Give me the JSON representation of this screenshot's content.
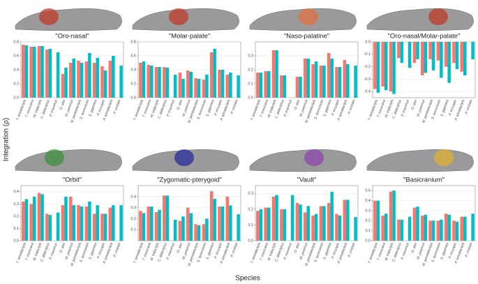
{
  "ylabel": "Integration (ρ)",
  "xlabel": "Species",
  "chart_data": [
    {
      "type": "bar",
      "title": "\"Oro-nasal\"",
      "ylim": [
        0,
        0.8
      ],
      "yticks": [
        {
          "value": 0,
          "label": "0.0"
        },
        0.2,
        0.4,
        0.6,
        0.8
      ],
      "grid": true,
      "categories": [
        "T. tetradactyla",
        "T. mexicana",
        "M. tridactyla",
        "C. didactylus",
        "P. maximus",
        "O. afer",
        "M. javanica",
        "M. pentadactyla",
        "S. temminckii",
        "S. gigantea",
        "P. tricuspis",
        "P. tetradactyla",
        "P. cristata"
      ],
      "series": [
        {
          "color": "#f8766d",
          "values": [
            0.76,
            0.73,
            0.74,
            0.69,
            null,
            0.34,
            0.5,
            0.53,
            0.52,
            0.5,
            0.45,
            0.53,
            null
          ]
        },
        {
          "color": "#00bfc4",
          "values": [
            0.75,
            0.73,
            0.74,
            0.7,
            0.65,
            0.43,
            0.56,
            0.5,
            0.64,
            0.57,
            0.39,
            0.6,
            0.46
          ]
        }
      ]
    },
    {
      "type": "bar",
      "title": "\"Molar-palate\"",
      "ylim": [
        0,
        0.8
      ],
      "yticks": [
        {
          "value": 0,
          "label": "0.0"
        },
        0.2,
        0.4,
        0.6,
        0.8
      ],
      "grid": true,
      "categories": [
        "T. tetradactyla",
        "T. mexicana",
        "M. tridactyla",
        "C. didactylus",
        "P. maximus",
        "O. afer",
        "M. javanica",
        "M. pentadactyla",
        "S. temminckii",
        "S. gigantea",
        "P. tricuspis",
        "P. tetradactyla",
        "P. cristata"
      ],
      "series": [
        {
          "color": "#f8766d",
          "values": [
            0.5,
            0.47,
            0.44,
            0.44,
            null,
            0.36,
            0.39,
            0.28,
            0.26,
            0.65,
            0.4,
            0.33,
            null
          ]
        },
        {
          "color": "#00bfc4",
          "values": [
            0.52,
            0.46,
            0.44,
            0.43,
            0.33,
            0.27,
            0.37,
            0.27,
            0.33,
            0.7,
            0.4,
            0.36,
            0.32
          ]
        }
      ]
    },
    {
      "type": "bar",
      "title": "\"Naso-palatine\"",
      "ylim": [
        0,
        0.4
      ],
      "yticks": [
        {
          "value": 0,
          "label": "0.0"
        },
        0.1,
        0.2,
        0.3
      ],
      "grid": true,
      "categories": [
        "T. tetradactyla",
        "T. mexicana",
        "M. tridactyla",
        "C. didactylus",
        "P. maximus",
        "O. afer",
        "M. javanica",
        "M. pentadactyla",
        "S. temminckii",
        "S. gigantea",
        "P. tricuspis",
        "P. tetradactyla",
        "P. cristata"
      ],
      "series": [
        {
          "color": "#f8766d",
          "values": [
            0.18,
            0.19,
            0.34,
            0.16,
            null,
            0.15,
            0.28,
            0.24,
            0.23,
            0.32,
            0.22,
            0.27,
            null
          ]
        },
        {
          "color": "#00bfc4",
          "values": [
            0.18,
            0.19,
            0.34,
            0.16,
            null,
            0.15,
            0.28,
            0.26,
            0.23,
            0.28,
            0.22,
            0.24,
            0.23
          ]
        }
      ]
    },
    {
      "type": "bar",
      "title": "\"Oro-nasal/Molar-palate\"",
      "ylim": [
        -0.45,
        0
      ],
      "yticks": [
        -0.4,
        -0.3,
        -0.2,
        -0.1,
        {
          "value": 0,
          "label": "0.0"
        }
      ],
      "grid": true,
      "categories": [
        "T. tetradactyla",
        "T. mexicana",
        "M. tridactyla",
        "C. didactylus",
        "P. maximus",
        "O. afer",
        "M. javanica",
        "M. pentadactyla",
        "S. temminckii",
        "S. gigantea",
        "P. tricuspis",
        "P. tetradactyla",
        "P. cristata"
      ],
      "series": [
        {
          "color": "#f8766d",
          "values": [
            -0.38,
            -0.36,
            -0.4,
            -0.13,
            null,
            -0.17,
            -0.27,
            -0.14,
            -0.15,
            -0.2,
            -0.17,
            -0.24,
            null
          ]
        },
        {
          "color": "#00bfc4",
          "values": [
            -0.41,
            -0.39,
            -0.42,
            -0.17,
            -0.21,
            -0.14,
            -0.25,
            -0.23,
            -0.29,
            -0.33,
            -0.22,
            -0.27,
            -0.14
          ]
        }
      ]
    },
    {
      "type": "bar",
      "title": "\"Orbit\"",
      "ylim": [
        0,
        0.45
      ],
      "yticks": [
        {
          "value": 0,
          "label": "0.0"
        },
        0.1,
        0.2,
        0.3,
        0.4
      ],
      "grid": true,
      "categories": [
        "T. tetradactyla",
        "T. mexicana",
        "M. tridactyla",
        "C. didactylus",
        "P. maximus",
        "O. afer",
        "M. javanica",
        "M. pentadactyla",
        "S. temminckii",
        "S. gigantea",
        "P. tricuspis",
        "P. tetradactyla",
        "P. cristata"
      ],
      "series": [
        {
          "color": "#f8766d",
          "values": [
            0.32,
            0.3,
            0.39,
            0.22,
            null,
            0.29,
            0.36,
            0.29,
            0.28,
            0.22,
            0.22,
            0.27,
            null
          ]
        },
        {
          "color": "#00bfc4",
          "values": [
            0.34,
            0.36,
            0.38,
            0.21,
            0.23,
            0.36,
            0.29,
            0.28,
            0.32,
            0.29,
            0.22,
            0.29,
            0.29
          ]
        }
      ]
    },
    {
      "type": "bar",
      "title": "\"Zygomatic-pterygoid\"",
      "ylim": [
        0,
        0.5
      ],
      "yticks": [
        0.1,
        0.2,
        0.3,
        0.4
      ],
      "grid": true,
      "categories": [
        "T. tetradactyla",
        "T. mexicana",
        "M. tridactyla",
        "C. didactylus",
        "P. maximus",
        "O. afer",
        "M. javanica",
        "M. pentadactyla",
        "S. temminckii",
        "S. gigantea",
        "P. tricuspis",
        "P. tetradactyla",
        "P. cristata"
      ],
      "series": [
        {
          "color": "#f8766d",
          "values": [
            0.27,
            0.31,
            0.26,
            0.41,
            null,
            0.18,
            0.3,
            0.15,
            0.15,
            0.45,
            0.31,
            0.4,
            null
          ]
        },
        {
          "color": "#00bfc4",
          "values": [
            0.25,
            0.31,
            0.28,
            0.41,
            0.19,
            0.22,
            0.25,
            0.14,
            0.2,
            0.38,
            0.31,
            0.32,
            0.24
          ]
        }
      ]
    },
    {
      "type": "bar",
      "title": "\"Vault\"",
      "ylim": [
        0,
        0.35
      ],
      "yticks": [
        {
          "value": 0,
          "label": "0.0"
        },
        0.1,
        0.2,
        0.3
      ],
      "grid": true,
      "categories": [
        "T. tetradactyla",
        "T. mexicana",
        "M. tridactyla",
        "C. didactylus",
        "P. maximus",
        "O. afer",
        "M. javanica",
        "M. pentadactyla",
        "S. temminckii",
        "S. gigantea",
        "P. tricuspis",
        "P. tetradactyla",
        "P. cristata"
      ],
      "series": [
        {
          "color": "#f8766d",
          "values": [
            0.19,
            0.21,
            0.28,
            0.2,
            null,
            0.24,
            0.18,
            0.16,
            0.22,
            0.24,
            0.17,
            0.26,
            null
          ]
        },
        {
          "color": "#00bfc4",
          "values": [
            0.2,
            0.21,
            0.29,
            0.2,
            0.29,
            0.23,
            0.22,
            0.17,
            0.22,
            0.31,
            0.16,
            0.26,
            0.15
          ]
        }
      ]
    },
    {
      "type": "bar",
      "title": "\"Basicranium\"",
      "ylim": [
        0,
        0.55
      ],
      "yticks": [
        {
          "value": 0,
          "label": "0.0"
        },
        0.1,
        0.2,
        0.3,
        0.4,
        0.5
      ],
      "grid": true,
      "categories": [
        "T. tetradactyla",
        "T. mexicana",
        "M. tridactyla",
        "C. didactylus",
        "P. maximus",
        "O. afer",
        "M. javanica",
        "M. pentadactyla",
        "S. temminckii",
        "S. gigantea",
        "P. tricuspis",
        "P. tetradactyla",
        "P. cristata"
      ],
      "series": [
        {
          "color": "#f8766d",
          "values": [
            0.4,
            0.25,
            0.49,
            0.21,
            null,
            0.33,
            0.25,
            0.2,
            0.2,
            0.27,
            0.2,
            0.24,
            null
          ]
        },
        {
          "color": "#00bfc4",
          "values": [
            0.4,
            0.27,
            0.5,
            0.21,
            0.24,
            0.34,
            0.26,
            0.2,
            0.21,
            0.26,
            0.19,
            0.24,
            0.27
          ]
        }
      ]
    }
  ]
}
